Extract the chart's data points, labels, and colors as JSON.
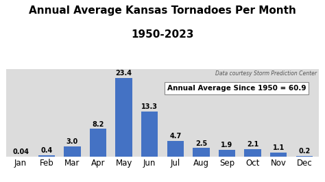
{
  "title_line1": "Annual Average Kansas Tornadoes Per Month",
  "title_line2": "1950-2023",
  "months": [
    "Jan",
    "Feb",
    "Mar",
    "Apr",
    "May",
    "Jun",
    "Jul",
    "Aug",
    "Sep",
    "Oct",
    "Nov",
    "Dec"
  ],
  "values": [
    0.04,
    0.4,
    3.0,
    8.2,
    23.4,
    13.3,
    4.7,
    2.5,
    1.9,
    2.1,
    1.1,
    0.2
  ],
  "bar_color": "#4472C4",
  "bg_color": "#DCDCDC",
  "fig_bg_color": "#FFFFFF",
  "annotation_text": "Annual Average Since 1950 = 60.9",
  "data_source": "Data courtesy Storm Prediction Center",
  "ylim": [
    0,
    26
  ],
  "title_fontsize": 11,
  "bar_label_fontsize": 7,
  "tick_fontsize": 8.5,
  "annotation_fontsize": 7.5,
  "source_fontsize": 5.5,
  "grid_color": "#BBBBBB"
}
